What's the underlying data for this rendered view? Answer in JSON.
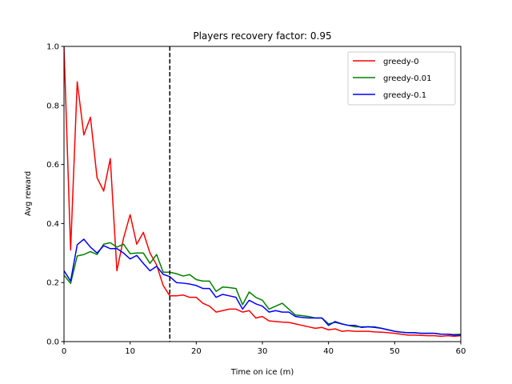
{
  "chart_data": {
    "type": "line",
    "title": "Players recovery factor: 0.95",
    "xlabel": "Time on ice (m)",
    "ylabel": "Avg reward",
    "xlim": [
      0,
      60
    ],
    "ylim": [
      0,
      1.0
    ],
    "xticks": [
      "0",
      "10",
      "20",
      "30",
      "40",
      "50",
      "60"
    ],
    "yticks": [
      "0.0",
      "0.2",
      "0.4",
      "0.6",
      "0.8",
      "1.0"
    ],
    "grid": false,
    "legend_position": "top-right",
    "vertical_line": {
      "x": 16,
      "style": "dashed",
      "color": "#000000"
    },
    "x": [
      0,
      1,
      2,
      3,
      4,
      5,
      6,
      7,
      8,
      9,
      10,
      11,
      12,
      13,
      14,
      15,
      16,
      17,
      18,
      19,
      20,
      21,
      22,
      23,
      24,
      25,
      26,
      27,
      28,
      29,
      30,
      31,
      32,
      33,
      34,
      35,
      36,
      37,
      38,
      39,
      40,
      41,
      42,
      43,
      44,
      45,
      46,
      47,
      48,
      49,
      50,
      51,
      52,
      53,
      54,
      55,
      56,
      57,
      58,
      59,
      60
    ],
    "series": [
      {
        "name": "greedy-0",
        "color": "#ff0000",
        "values": [
          1.0,
          0.31,
          0.88,
          0.7,
          0.76,
          0.555,
          0.51,
          0.62,
          0.24,
          0.35,
          0.43,
          0.33,
          0.37,
          0.3,
          0.26,
          0.19,
          0.155,
          0.155,
          0.158,
          0.15,
          0.15,
          0.13,
          0.12,
          0.1,
          0.105,
          0.11,
          0.11,
          0.1,
          0.105,
          0.08,
          0.085,
          0.07,
          0.068,
          0.066,
          0.065,
          0.06,
          0.055,
          0.05,
          0.045,
          0.048,
          0.04,
          0.043,
          0.035,
          0.037,
          0.035,
          0.035,
          0.035,
          0.033,
          0.032,
          0.03,
          0.028,
          0.025,
          0.022,
          0.022,
          0.021,
          0.02,
          0.02,
          0.018,
          0.02,
          0.018,
          0.02
        ]
      },
      {
        "name": "greedy-0.01",
        "color": "#008000",
        "values": [
          0.225,
          0.197,
          0.29,
          0.295,
          0.305,
          0.295,
          0.33,
          0.335,
          0.32,
          0.33,
          0.298,
          0.3,
          0.3,
          0.265,
          0.295,
          0.235,
          0.235,
          0.23,
          0.222,
          0.227,
          0.21,
          0.205,
          0.205,
          0.17,
          0.185,
          0.183,
          0.18,
          0.125,
          0.168,
          0.15,
          0.14,
          0.11,
          0.12,
          0.13,
          0.11,
          0.09,
          0.088,
          0.085,
          0.08,
          0.08,
          0.06,
          0.065,
          0.06,
          0.055,
          0.05,
          0.05,
          0.05,
          0.05,
          0.045,
          0.04,
          0.035,
          0.032,
          0.03,
          0.03,
          0.028,
          0.028,
          0.028,
          0.025,
          0.025,
          0.024,
          0.025
        ]
      },
      {
        "name": "greedy-0.1",
        "color": "#0000ff",
        "values": [
          0.24,
          0.205,
          0.328,
          0.347,
          0.32,
          0.3,
          0.325,
          0.315,
          0.315,
          0.3,
          0.28,
          0.292,
          0.265,
          0.24,
          0.255,
          0.228,
          0.22,
          0.2,
          0.198,
          0.195,
          0.19,
          0.18,
          0.18,
          0.15,
          0.16,
          0.155,
          0.15,
          0.11,
          0.14,
          0.128,
          0.12,
          0.1,
          0.105,
          0.1,
          0.1,
          0.085,
          0.082,
          0.08,
          0.08,
          0.08,
          0.055,
          0.068,
          0.06,
          0.055,
          0.055,
          0.048,
          0.05,
          0.048,
          0.045,
          0.04,
          0.035,
          0.032,
          0.03,
          0.03,
          0.028,
          0.028,
          0.028,
          0.025,
          0.025,
          0.022,
          0.022
        ]
      }
    ]
  }
}
